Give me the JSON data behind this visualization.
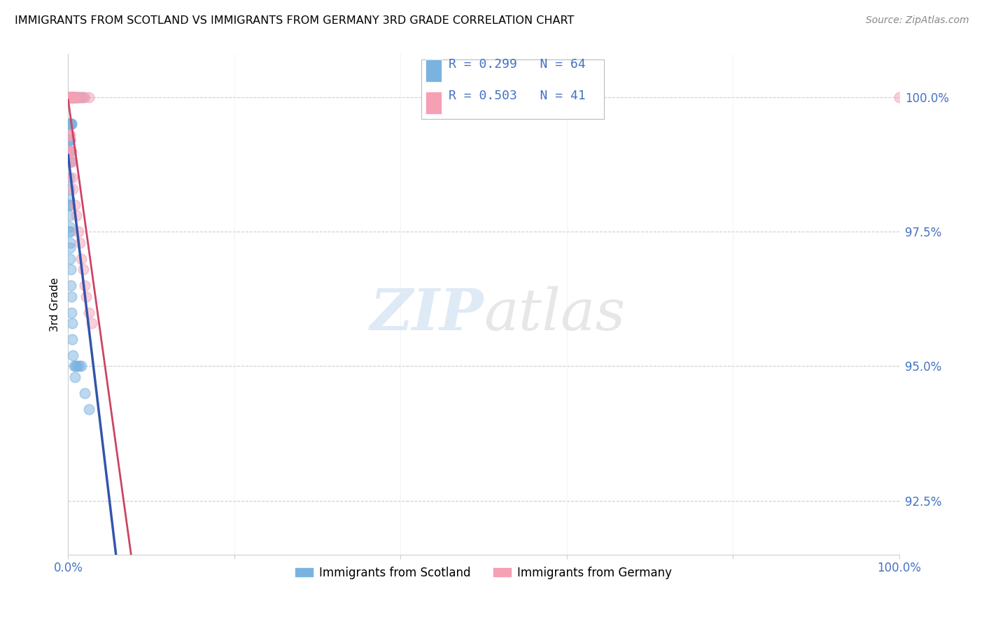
{
  "title": "IMMIGRANTS FROM SCOTLAND VS IMMIGRANTS FROM GERMANY 3RD GRADE CORRELATION CHART",
  "source": "Source: ZipAtlas.com",
  "ylabel": "3rd Grade",
  "yticks": [
    100.0,
    97.5,
    95.0,
    92.5
  ],
  "ytick_labels": [
    "100.0%",
    "97.5%",
    "95.0%",
    "92.5%"
  ],
  "xlim": [
    0.0,
    100.0
  ],
  "ylim": [
    91.5,
    100.8
  ],
  "scotland_color": "#7ab3e0",
  "germany_color": "#f5a0b5",
  "trendline_scotland_color": "#3355aa",
  "trendline_germany_color": "#cc4466",
  "scotland_x": [
    0.1,
    0.15,
    0.2,
    0.25,
    0.3,
    0.35,
    0.4,
    0.45,
    0.5,
    0.55,
    0.6,
    0.65,
    0.7,
    0.75,
    0.8,
    0.9,
    1.0,
    1.2,
    1.5,
    1.8,
    0.1,
    0.15,
    0.2,
    0.25,
    0.3,
    0.35,
    0.4,
    0.1,
    0.15,
    0.2,
    0.25,
    0.3,
    0.1,
    0.15,
    0.2,
    0.1,
    0.15,
    0.1,
    0.1,
    0.12,
    0.12,
    0.14,
    0.14,
    0.16,
    0.18,
    0.2,
    0.22,
    0.24,
    0.26,
    0.28,
    0.3,
    0.35,
    0.4,
    0.45,
    0.5,
    0.6,
    0.7,
    0.9,
    1.1,
    1.3,
    1.6,
    0.8,
    2.0,
    2.5
  ],
  "scotland_y": [
    100.0,
    100.0,
    100.0,
    100.0,
    100.0,
    100.0,
    100.0,
    100.0,
    100.0,
    100.0,
    100.0,
    100.0,
    100.0,
    100.0,
    100.0,
    100.0,
    100.0,
    100.0,
    100.0,
    100.0,
    99.5,
    99.5,
    99.5,
    99.5,
    99.5,
    99.5,
    99.5,
    99.2,
    99.2,
    99.2,
    99.2,
    99.0,
    99.0,
    99.0,
    98.8,
    98.8,
    98.5,
    98.3,
    98.1,
    98.0,
    98.0,
    98.0,
    97.8,
    97.6,
    97.5,
    97.5,
    97.3,
    97.2,
    97.0,
    96.8,
    96.5,
    96.3,
    96.0,
    95.8,
    95.5,
    95.2,
    95.0,
    95.0,
    95.0,
    95.0,
    95.0,
    94.8,
    94.5,
    94.2
  ],
  "germany_x": [
    0.1,
    0.15,
    0.2,
    0.25,
    0.3,
    0.35,
    0.4,
    0.45,
    0.5,
    0.55,
    0.6,
    0.65,
    0.7,
    0.75,
    0.8,
    1.0,
    1.2,
    1.6,
    2.0,
    2.5,
    0.1,
    0.15,
    0.2,
    0.25,
    0.3,
    0.35,
    0.4,
    0.45,
    0.5,
    0.6,
    0.8,
    1.0,
    1.2,
    1.4,
    1.6,
    1.8,
    2.0,
    2.2,
    2.5,
    2.8,
    100.0
  ],
  "germany_y": [
    100.0,
    100.0,
    100.0,
    100.0,
    100.0,
    100.0,
    100.0,
    100.0,
    100.0,
    100.0,
    100.0,
    100.0,
    100.0,
    100.0,
    100.0,
    100.0,
    100.0,
    100.0,
    100.0,
    100.0,
    99.3,
    99.3,
    99.3,
    99.0,
    99.0,
    99.0,
    98.8,
    98.8,
    98.5,
    98.3,
    98.0,
    97.8,
    97.5,
    97.3,
    97.0,
    96.8,
    96.5,
    96.3,
    96.0,
    95.8,
    100.0
  ],
  "r_scotland": "0.299",
  "n_scotland": "64",
  "r_germany": "0.503",
  "n_germany": "41"
}
